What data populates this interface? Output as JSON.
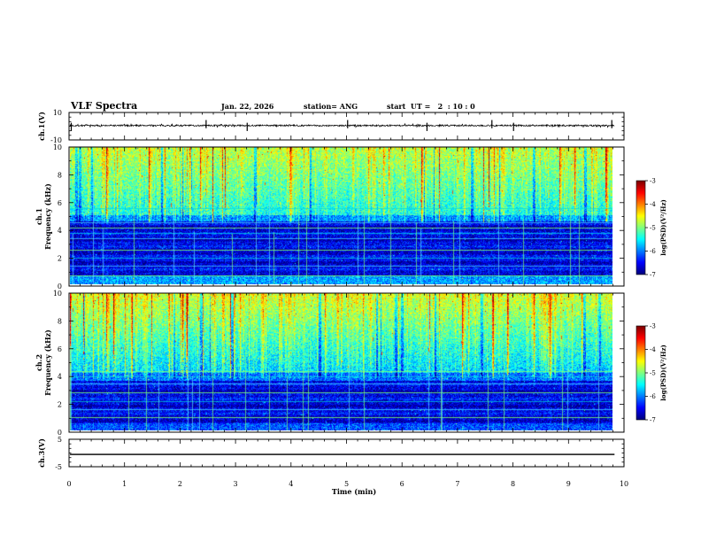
{
  "chart_data": {
    "type": "heatmap",
    "title": "VLF Spectra",
    "date": "Jan. 22, 2026",
    "station": "station= ANG",
    "start_ut": "start  UT =   2  : 10 : 0",
    "x_axis": {
      "label": "Time  (min)",
      "range": [
        0,
        10
      ],
      "ticks": [
        "0",
        "1",
        "2",
        "3",
        "4",
        "5",
        "6",
        "7",
        "8",
        "9",
        "10"
      ]
    },
    "panels": [
      {
        "id": "ch1-waveform",
        "type": "line",
        "ylabel": "ch.1(V)",
        "ylim": [
          -10,
          10
        ],
        "ytick_labels": [
          "10",
          "-10"
        ],
        "baseline": 0.5,
        "noise_amplitude": 0.6,
        "spike_times_min": [
          0.04,
          2.47,
          3.21,
          5.02,
          6.45,
          7.62,
          8.01,
          9.78
        ],
        "data_end_min": 9.83
      },
      {
        "id": "ch1-spectrogram",
        "type": "heatmap",
        "ylabel_top": "ch.1",
        "ylabel": "Frequency  (kHz)",
        "ylim": [
          0,
          10
        ],
        "ytick_labels": [
          "0",
          "2",
          "4",
          "6",
          "8",
          "10"
        ],
        "colorbar": {
          "label": "log(PSD)(V²/Hz)",
          "range": [
            -7,
            -3
          ],
          "tick_labels": [
            "-3",
            "-4",
            "-5",
            "-6",
            "-7"
          ]
        },
        "line_freqs_khz": [
          0.6,
          1.3,
          1.9,
          2.5,
          3.3,
          3.7,
          4.1,
          4.5,
          5.5
        ],
        "seed": 17
      },
      {
        "id": "ch2-spectrogram",
        "type": "heatmap",
        "ylabel_top": "ch.2",
        "ylabel": "Frequency  (kHz)",
        "ylim": [
          0,
          10
        ],
        "ytick_labels": [
          "0",
          "2",
          "4",
          "6",
          "8",
          "10"
        ],
        "colorbar": {
          "label": "log(PSD)(V²/Hz)",
          "range": [
            -7,
            -3
          ],
          "tick_labels": [
            "-3",
            "-4",
            "-5",
            "-6",
            "-7"
          ]
        },
        "line_freqs_khz": [
          0.9,
          1.5,
          2.1,
          2.7,
          3.4,
          3.9,
          4.3
        ],
        "seed": 53
      },
      {
        "id": "ch3-waveform",
        "type": "line",
        "ylabel": "ch.3(V)",
        "ylim": [
          -5,
          5
        ],
        "ytick_labels": [
          "5",
          "-5"
        ],
        "baseline": -0.5,
        "line_thickness_units": 0.45,
        "data_end_min": 9.83
      }
    ]
  }
}
